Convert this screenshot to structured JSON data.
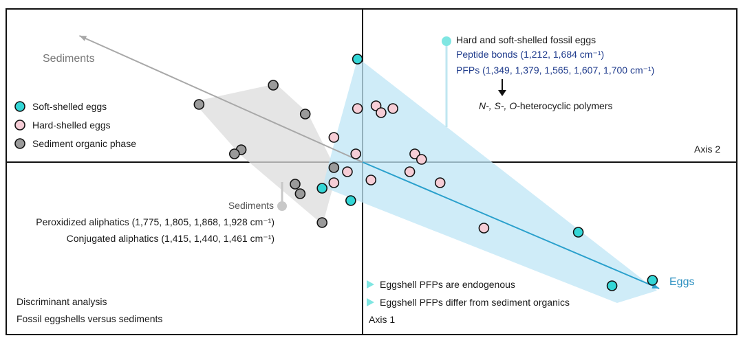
{
  "chart_data": {
    "type": "scatter",
    "axes": {
      "x_label": "Axis 1",
      "y_label": "Axis 2",
      "xlim": [
        -10,
        10
      ],
      "ylim": [
        -5,
        5
      ]
    },
    "caption": [
      "Discriminant analysis",
      "Fossil eggshells versus sediments"
    ],
    "legend": [
      {
        "name": "Soft-shelled eggs",
        "color": "#33d6d6"
      },
      {
        "name": "Hard-shelled eggs",
        "color": "#f6cdd6"
      },
      {
        "name": "Sediment organic phase",
        "color": "#9a9a9a"
      }
    ],
    "vectors": [
      {
        "label": "Sediments",
        "from": [
          0,
          0
        ],
        "to": [
          -8.4,
          4.6
        ],
        "color": "#a8a8a8"
      },
      {
        "label": "Eggs",
        "from": [
          0,
          0
        ],
        "to": [
          8.8,
          -4.6
        ],
        "color": "#2aa0cc"
      }
    ],
    "top_annotation": {
      "title": "Hard and soft-shelled fossil eggs",
      "peptide": "Peptide bonds (1,212, 1,684 cm⁻¹)",
      "pfps": "PFPs (1,349, 1,379, 1,565, 1,607, 1,700 cm⁻¹)",
      "polymer_italic": "N-, S-, O-",
      "polymer_rest": "heterocyclic polymers"
    },
    "sediment_annotation": {
      "title": "Sediments",
      "line1": "Peroxidized aliphatics (1,775, 1,805, 1,868, 1,928 cm⁻¹)",
      "line2": "Conjugated aliphatics (1,415, 1,440, 1,461 cm⁻¹)"
    },
    "bullets": [
      "Eggshell PFPs are endogenous",
      "Eggshell PFPs differ from sediment organics"
    ],
    "series": [
      {
        "name": "Soft-shelled eggs",
        "points": [
          [
            -0.15,
            3.75
          ],
          [
            -1.2,
            -0.95
          ],
          [
            -0.35,
            -1.4
          ],
          [
            6.4,
            -2.55
          ],
          [
            8.6,
            -4.3
          ],
          [
            7.4,
            -4.5
          ]
        ]
      },
      {
        "name": "Hard-shelled eggs",
        "points": [
          [
            -0.15,
            1.95
          ],
          [
            0.4,
            2.05
          ],
          [
            0.55,
            1.8
          ],
          [
            0.9,
            1.95
          ],
          [
            -0.85,
            0.9
          ],
          [
            -0.2,
            0.3
          ],
          [
            1.55,
            0.3
          ],
          [
            1.75,
            0.1
          ],
          [
            1.4,
            -0.35
          ],
          [
            -0.45,
            -0.35
          ],
          [
            -0.85,
            -0.75
          ],
          [
            0.25,
            -0.65
          ],
          [
            2.3,
            -0.75
          ],
          [
            3.6,
            -2.4
          ]
        ]
      },
      {
        "name": "Sediment organic phase",
        "points": [
          [
            -2.65,
            2.8
          ],
          [
            -4.85,
            2.1
          ],
          [
            -1.7,
            1.75
          ],
          [
            -3.6,
            0.45
          ],
          [
            -3.8,
            0.3
          ],
          [
            -0.85,
            -0.2
          ],
          [
            -2.0,
            -0.8
          ],
          [
            -1.85,
            -1.15
          ],
          [
            -1.2,
            -2.2
          ]
        ]
      }
    ]
  }
}
